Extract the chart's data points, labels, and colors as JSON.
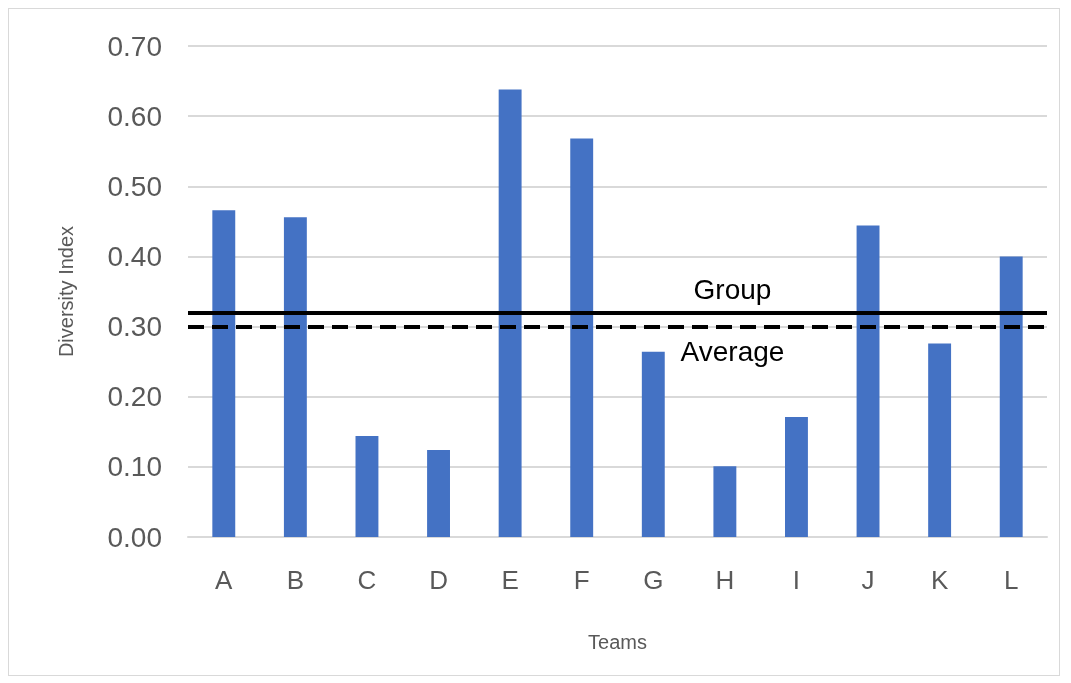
{
  "chart_data": {
    "type": "bar",
    "xlabel": "Teams",
    "ylabel": "Diversity Index",
    "categories": [
      "A",
      "B",
      "C",
      "D",
      "E",
      "F",
      "G",
      "H",
      "I",
      "J",
      "K",
      "L"
    ],
    "values": [
      0.466,
      0.456,
      0.144,
      0.124,
      0.638,
      0.568,
      0.264,
      0.101,
      0.171,
      0.444,
      0.276,
      0.4
    ],
    "color": "#4472c4",
    "ylim": [
      0,
      0.7
    ],
    "yticks": [
      {
        "value": 0,
        "label": "0.00"
      },
      {
        "value": 0.1,
        "label": "0.10"
      },
      {
        "value": 0.2,
        "label": "0.20"
      },
      {
        "value": 0.3,
        "label": "0.30"
      },
      {
        "value": 0.4,
        "label": "0.40"
      },
      {
        "value": 0.5,
        "label": "0.50"
      },
      {
        "value": 0.6,
        "label": "0.60"
      },
      {
        "value": 0.7,
        "label": "0.70"
      }
    ],
    "grid": "y",
    "ref_lines": [
      {
        "axis": "y",
        "value": 0.319,
        "label": "Group",
        "color": "#000000",
        "line_style": "solid"
      },
      {
        "axis": "y",
        "value": 0.299,
        "label": "Average",
        "color": "#000000",
        "line_style": "dashed"
      }
    ]
  }
}
